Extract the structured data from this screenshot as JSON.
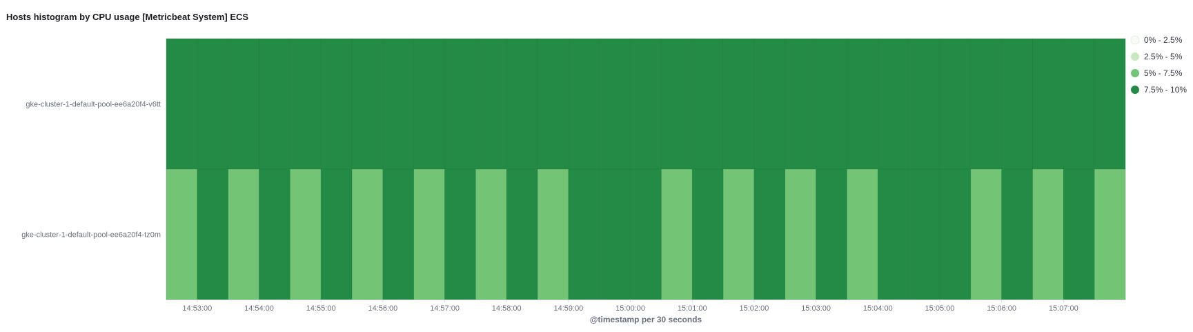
{
  "panel": {
    "title": "Hosts histogram by CPU usage [Metricbeat System] ECS"
  },
  "chart_data": {
    "type": "heatmap",
    "title": "Hosts histogram by CPU usage [Metricbeat System] ECS",
    "xlabel": "@timestamp per 30 seconds",
    "rows": [
      "gke-cluster-1-default-pool-ee6a20f4-v6tt",
      "gke-cluster-1-default-pool-ee6a20f4-tz0m"
    ],
    "x_ticks": [
      "14:53:00",
      "14:54:00",
      "14:55:00",
      "14:56:00",
      "14:57:00",
      "14:58:00",
      "14:59:00",
      "15:00:00",
      "15:01:00",
      "15:02:00",
      "15:03:00",
      "15:04:00",
      "15:05:00",
      "15:06:00",
      "15:07:00"
    ],
    "legend": [
      {
        "label": "0% - 2.5%",
        "color": "#f7fcf5"
      },
      {
        "label": "2.5% - 5%",
        "color": "#c7e9c0"
      },
      {
        "label": "5% - 7.5%",
        "color": "#74c476"
      },
      {
        "label": "7.5% - 10%",
        "color": "#238b45"
      }
    ],
    "cells": [
      [
        3,
        3,
        3,
        3,
        3,
        3,
        3,
        3,
        3,
        3,
        3,
        3,
        3,
        3,
        3,
        3,
        3,
        3,
        3,
        3,
        3,
        3,
        3,
        3,
        3,
        3,
        3,
        3,
        3,
        3,
        3
      ],
      [
        2,
        3,
        2,
        3,
        2,
        3,
        2,
        3,
        2,
        3,
        2,
        3,
        2,
        3,
        3,
        3,
        2,
        3,
        2,
        3,
        2,
        3,
        2,
        3,
        3,
        3,
        2,
        3,
        2,
        3,
        2
      ]
    ]
  }
}
